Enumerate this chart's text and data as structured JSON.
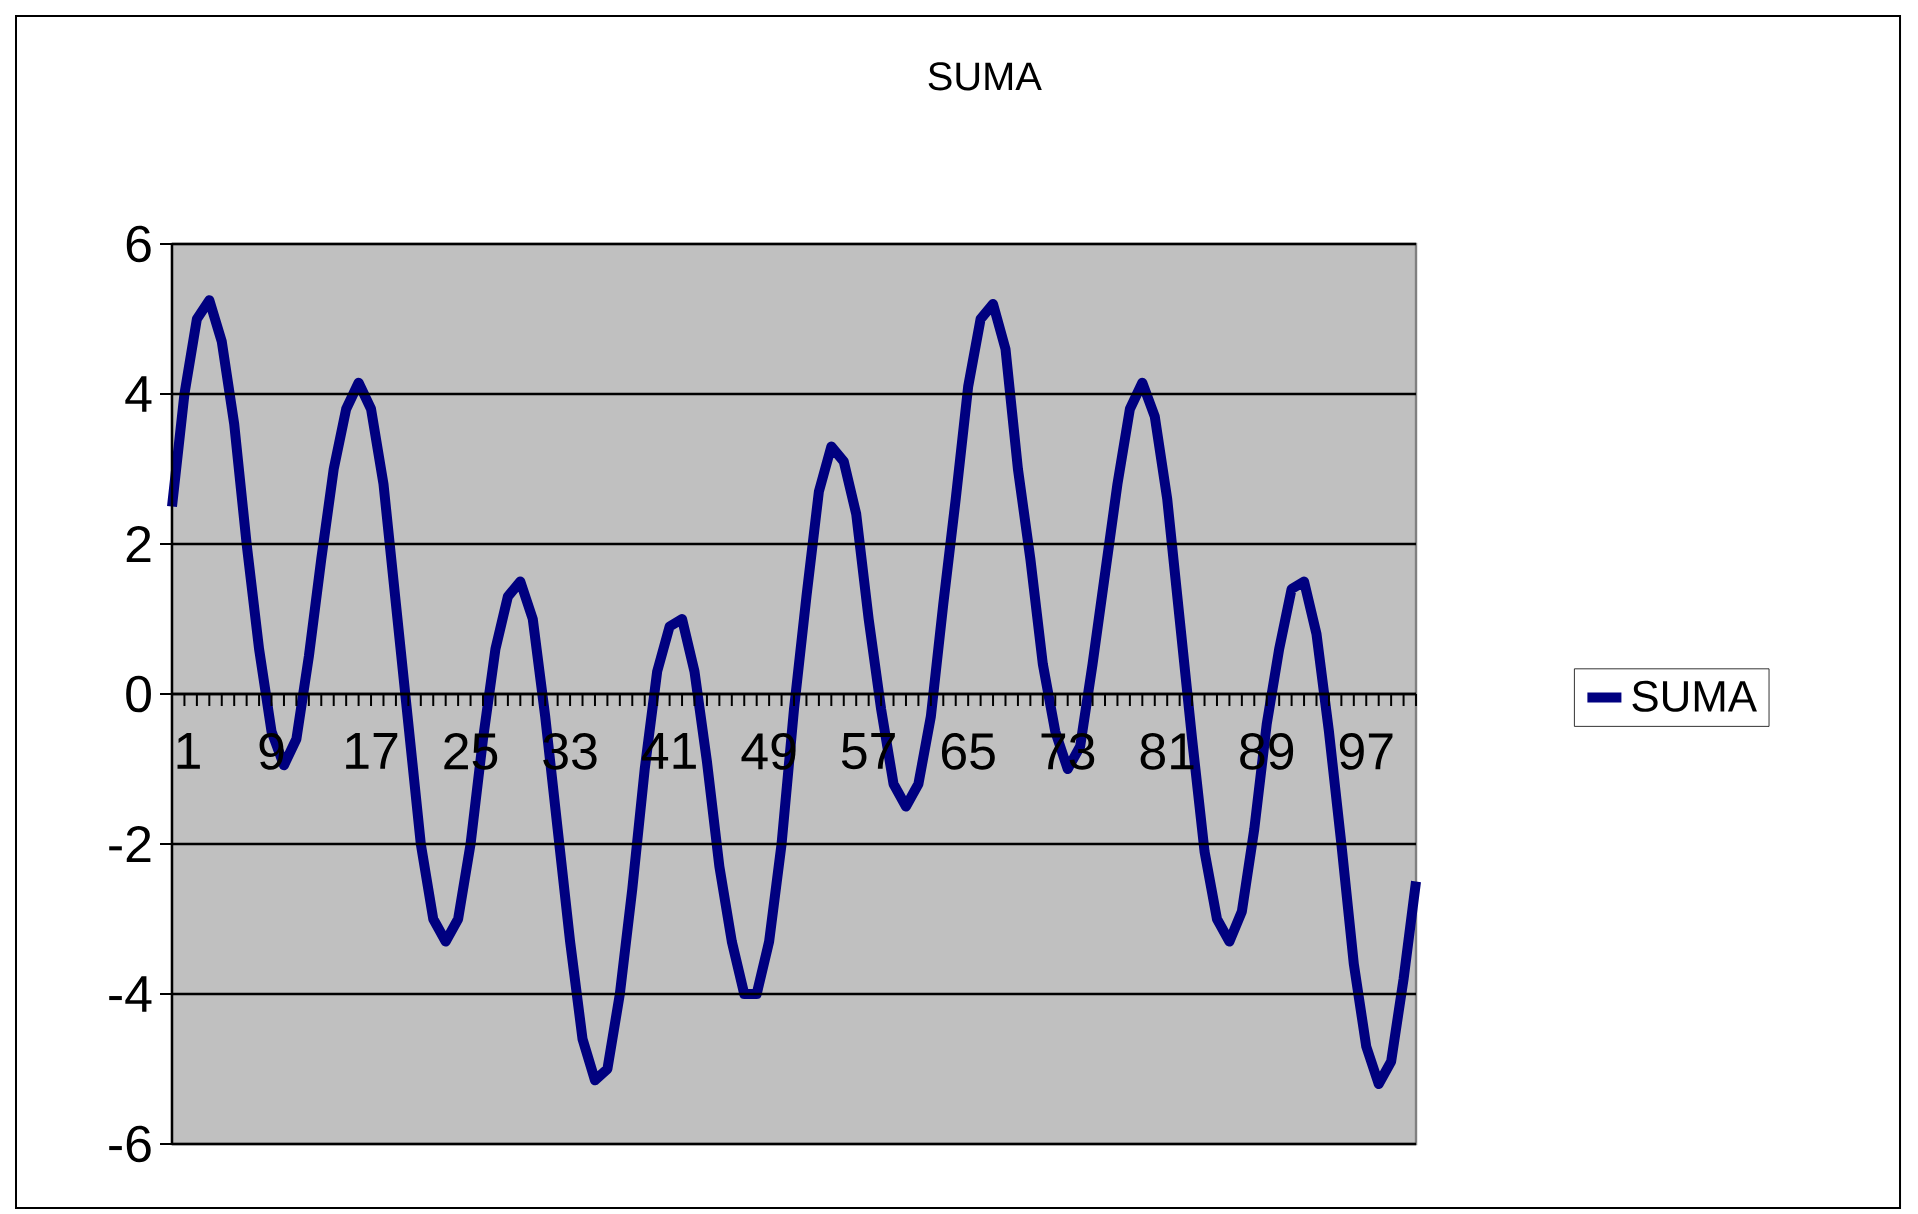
{
  "chart_data": {
    "type": "line",
    "title": "SUMA",
    "categories": [
      "1",
      null,
      null,
      null,
      null,
      null,
      null,
      null,
      "9",
      null,
      null,
      null,
      null,
      null,
      null,
      null,
      "17",
      null,
      null,
      null,
      null,
      null,
      null,
      null,
      "25",
      null,
      null,
      null,
      null,
      null,
      null,
      null,
      "33",
      null,
      null,
      null,
      null,
      null,
      null,
      null,
      "41",
      null,
      null,
      null,
      null,
      null,
      null,
      null,
      "49",
      null,
      null,
      null,
      null,
      null,
      null,
      null,
      "57",
      null,
      null,
      null,
      null,
      null,
      null,
      null,
      "65",
      null,
      null,
      null,
      null,
      null,
      null,
      null,
      "73",
      null,
      null,
      null,
      null,
      null,
      null,
      null,
      "81",
      null,
      null,
      null,
      null,
      null,
      null,
      null,
      "89",
      null,
      null,
      null,
      null,
      null,
      null,
      null,
      "97",
      null,
      null,
      null,
      null
    ],
    "series": [
      {
        "name": "SUMA",
        "color": "#000080",
        "values": [
          2.5,
          4.0,
          5.0,
          5.25,
          4.7,
          3.6,
          2.0,
          0.6,
          -0.5,
          -0.95,
          -0.6,
          0.5,
          1.8,
          3.0,
          3.8,
          4.15,
          3.8,
          2.8,
          1.2,
          -0.4,
          -2.0,
          -3.0,
          -3.3,
          -3.0,
          -2.0,
          -0.6,
          0.6,
          1.3,
          1.5,
          1.0,
          -0.3,
          -1.8,
          -3.3,
          -4.6,
          -5.15,
          -5.0,
          -4.0,
          -2.6,
          -1.0,
          0.3,
          0.9,
          1.0,
          0.3,
          -0.9,
          -2.3,
          -3.3,
          -4.0,
          -4.0,
          -3.3,
          -2.0,
          -0.2,
          1.3,
          2.7,
          3.3,
          3.1,
          2.4,
          1.0,
          -0.2,
          -1.2,
          -1.5,
          -1.2,
          -0.3,
          1.2,
          2.6,
          4.1,
          5.0,
          5.2,
          4.6,
          3.0,
          1.8,
          0.4,
          -0.5,
          -1.0,
          -0.7,
          0.4,
          1.6,
          2.8,
          3.8,
          4.15,
          3.7,
          2.6,
          1.0,
          -0.6,
          -2.1,
          -3.0,
          -3.3,
          -2.9,
          -1.8,
          -0.4,
          0.6,
          1.4,
          1.5,
          0.8,
          -0.5,
          -2.0,
          -3.6,
          -4.7,
          -5.2,
          -4.9,
          -3.8,
          -2.5
        ]
      }
    ],
    "ylim": [
      -6,
      6
    ],
    "yticks": [
      -6,
      -4,
      -2,
      0,
      2,
      4,
      6
    ],
    "grid": "y",
    "legend": "right"
  }
}
